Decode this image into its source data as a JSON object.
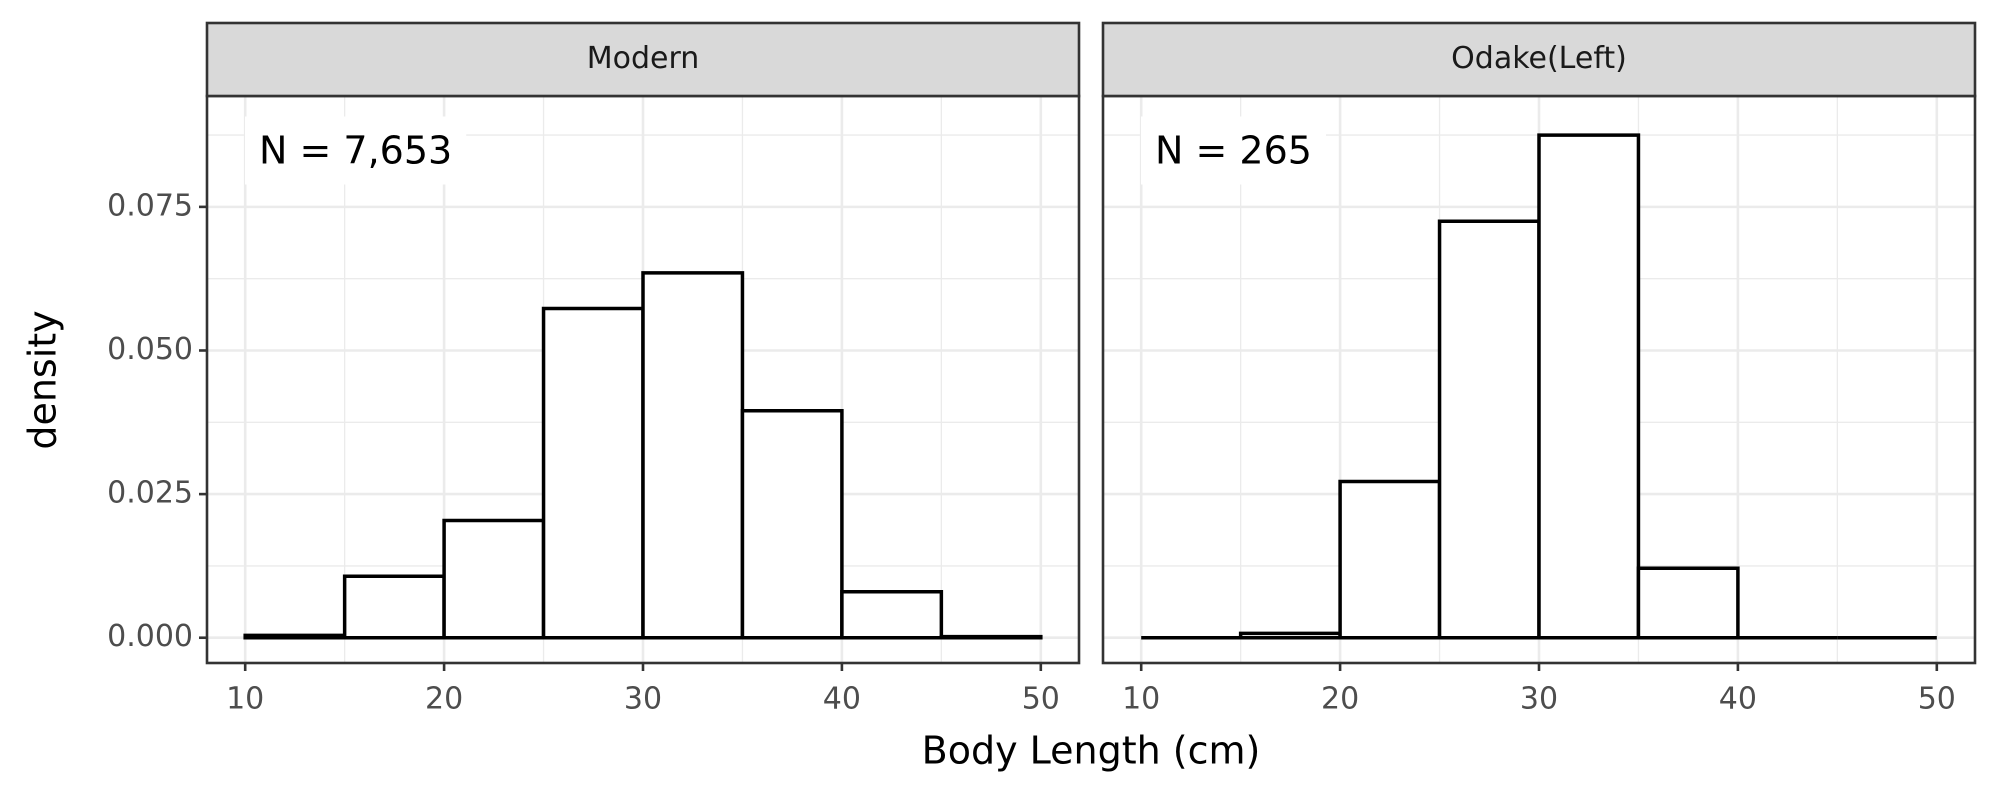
{
  "axis_labels": {
    "x": "Body Length (cm)",
    "y": "density"
  },
  "chart_data": [
    {
      "type": "histogram",
      "title": "Modern",
      "annotation": "N = 7,653",
      "bins": [
        10,
        15,
        20,
        25,
        30,
        35,
        40,
        45,
        50
      ],
      "values": [
        0.0004,
        0.0107,
        0.0204,
        0.0573,
        0.0635,
        0.0395,
        0.008,
        0.0002
      ],
      "color": "#ffffff",
      "edgecolor": "#000000",
      "xlim": [
        8.08,
        51.92
      ],
      "ylim": [
        -0.0044,
        0.0943
      ],
      "xticks": [
        10,
        20,
        30,
        40,
        50
      ],
      "yticks": [
        {
          "value": 0,
          "label": "0.000"
        },
        0.025,
        {
          "value": 0.05,
          "label": "0.050"
        },
        0.075
      ],
      "grid": true
    },
    {
      "type": "histogram",
      "title": "Odake(Left)",
      "annotation": "N = 265",
      "bins": [
        10,
        15,
        20,
        25,
        30,
        35,
        40,
        45,
        50
      ],
      "values": [
        0,
        0.00075,
        0.0272,
        0.0725,
        0.0875,
        0.0121,
        0,
        0
      ],
      "color": "#ffffff",
      "edgecolor": "#000000",
      "xlim": [
        8.08,
        51.92
      ],
      "ylim": [
        -0.0044,
        0.0943
      ],
      "xticks": [
        10,
        20,
        30,
        40,
        50
      ],
      "grid": true
    }
  ]
}
